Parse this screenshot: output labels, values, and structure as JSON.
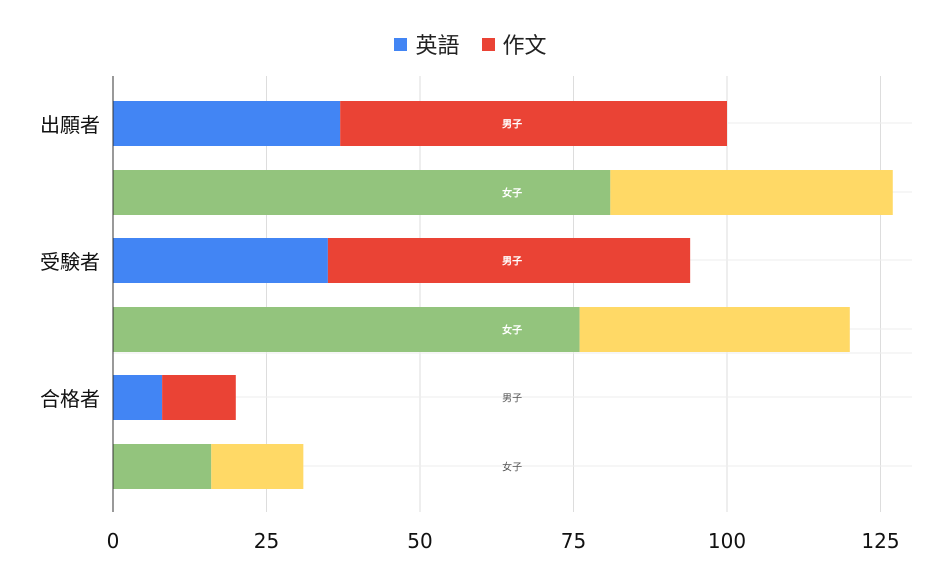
{
  "chart_data": {
    "type": "bar",
    "orientation": "horizontal",
    "stacked": true,
    "legend": {
      "position": "top",
      "items": [
        {
          "name": "英語",
          "color": "#4285F4"
        },
        {
          "name": "作文",
          "color": "#EA4335"
        }
      ]
    },
    "groups": [
      "出願者",
      "受験者",
      "合格者"
    ],
    "sublabels": [
      "男子",
      "女子"
    ],
    "bars": [
      {
        "group": "出願者",
        "sublabel": "男子",
        "segments": [
          {
            "series": "英語",
            "value": 37,
            "color": "#4285F4"
          },
          {
            "series": "作文",
            "value": 63,
            "color": "#EA4335"
          }
        ]
      },
      {
        "group": "出願者",
        "sublabel": "女子",
        "segments": [
          {
            "series": "英語",
            "value": 81,
            "color": "#93C47D"
          },
          {
            "series": "作文",
            "value": 46,
            "color": "#FFD966"
          }
        ]
      },
      {
        "group": "受験者",
        "sublabel": "男子",
        "segments": [
          {
            "series": "英語",
            "value": 35,
            "color": "#4285F4"
          },
          {
            "series": "作文",
            "value": 59,
            "color": "#EA4335"
          }
        ]
      },
      {
        "group": "受験者",
        "sublabel": "女子",
        "segments": [
          {
            "series": "英語",
            "value": 76,
            "color": "#93C47D"
          },
          {
            "series": "作文",
            "value": 44,
            "color": "#FFD966"
          }
        ]
      },
      {
        "group": "合格者",
        "sublabel": "男子",
        "segments": [
          {
            "series": "英語",
            "value": 8,
            "color": "#4285F4"
          },
          {
            "series": "作文",
            "value": 12,
            "color": "#EA4335"
          }
        ]
      },
      {
        "group": "合格者",
        "sublabel": "女子",
        "segments": [
          {
            "series": "英語",
            "value": 16,
            "color": "#93C47D"
          },
          {
            "series": "作文",
            "value": 15,
            "color": "#FFD966"
          }
        ]
      }
    ],
    "x_ticks": [
      0,
      25,
      50,
      75,
      100,
      125
    ],
    "xlim": [
      0,
      130
    ],
    "grid": true
  }
}
